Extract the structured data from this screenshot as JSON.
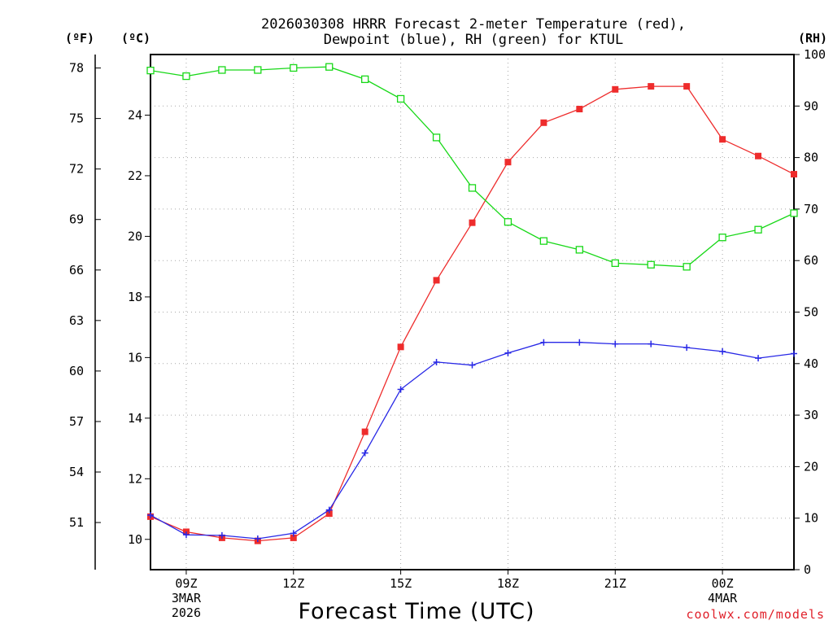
{
  "chart_data": {
    "type": "line",
    "title": "2026030308 HRRR Forecast 2-meter Temperature (red),",
    "title_line2": "Dewpoint (blue), RH (green) for KTUL",
    "xlabel": "Forecast Time (UTC)",
    "x": [
      8,
      9,
      10,
      11,
      12,
      13,
      14,
      15,
      16,
      17,
      18,
      19,
      20,
      21,
      22,
      23,
      24,
      25,
      26
    ],
    "xlim": [
      8,
      26
    ],
    "x_ticks": [
      {
        "x": 9,
        "lines": [
          "09Z",
          "3MAR",
          "2026"
        ]
      },
      {
        "x": 12,
        "lines": [
          "12Z"
        ]
      },
      {
        "x": 15,
        "lines": [
          "15Z"
        ]
      },
      {
        "x": 18,
        "lines": [
          "18Z"
        ]
      },
      {
        "x": 21,
        "lines": [
          "21Z"
        ]
      },
      {
        "x": 24,
        "lines": [
          "00Z",
          "4MAR"
        ]
      }
    ],
    "y_celsius": {
      "label": "(ºC)",
      "lim": [
        9.0,
        26.0
      ],
      "ticks": [
        "10",
        "12",
        "14",
        "16",
        "18",
        "20",
        "22",
        "24"
      ]
    },
    "y_fahrenheit": {
      "label": "(ºF)",
      "ticks": [
        "51",
        "54",
        "57",
        "60",
        "63",
        "66",
        "69",
        "72",
        "75",
        "78"
      ]
    },
    "y_rh": {
      "label": "(RH)",
      "lim": [
        0,
        100
      ],
      "ticks": [
        "0",
        "10",
        "20",
        "30",
        "40",
        "50",
        "60",
        "70",
        "80",
        "90",
        "100"
      ]
    },
    "series": [
      {
        "name": "Temperature",
        "axis": "celsius",
        "color": "#ee2c2c",
        "marker": "filled-square",
        "values": [
          10.75,
          10.25,
          10.05,
          9.95,
          10.05,
          10.85,
          13.55,
          16.35,
          18.55,
          20.45,
          22.45,
          23.75,
          24.2,
          24.85,
          24.95,
          24.95,
          23.2,
          22.65,
          22.05
        ]
      },
      {
        "name": "Dewpoint",
        "axis": "celsius",
        "color": "#2828e6",
        "marker": "plus",
        "values": [
          10.8,
          10.15,
          10.13,
          10.02,
          10.2,
          10.97,
          12.85,
          14.95,
          15.85,
          15.75,
          16.15,
          16.5,
          16.5,
          16.45,
          16.45,
          16.33,
          16.2,
          15.98,
          16.13
        ]
      },
      {
        "name": "RH",
        "axis": "rh",
        "color": "#18d818",
        "marker": "open-square",
        "values": [
          96.9,
          95.8,
          97.0,
          97.0,
          97.4,
          97.6,
          95.2,
          91.4,
          83.9,
          74.1,
          67.5,
          63.8,
          62.1,
          59.5,
          59.2,
          58.8,
          64.5,
          66.0,
          69.2
        ]
      }
    ]
  },
  "credit": "coolwx.com/models"
}
